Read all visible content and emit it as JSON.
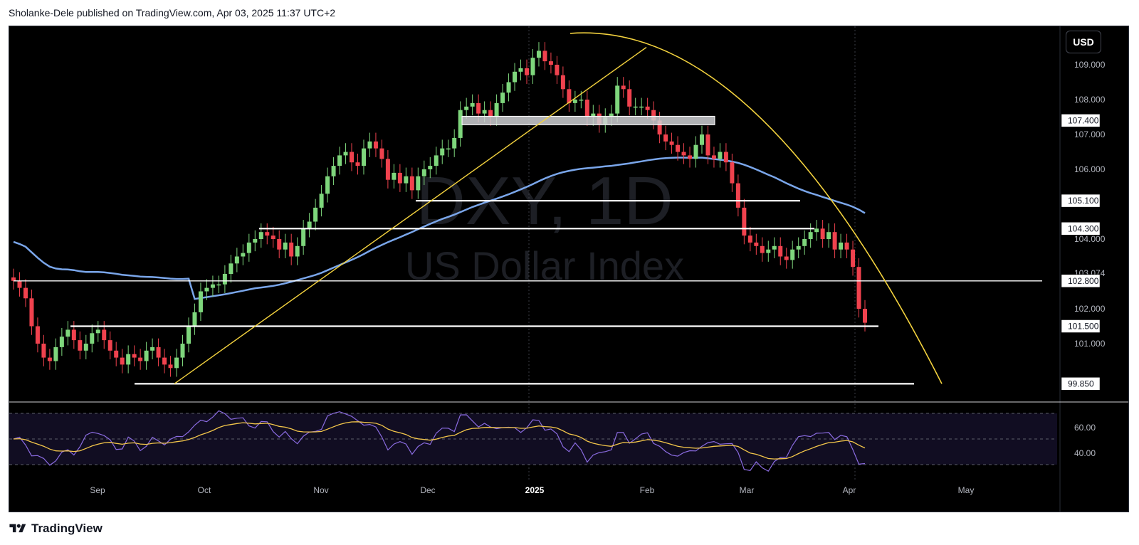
{
  "header": {
    "publisher_line": "Sholanke-Dele published on TradingView.com, Apr 03, 2025 11:37 UTC+2"
  },
  "footer": {
    "brand": "TradingView"
  },
  "toolbar": {
    "currency_button": "USD"
  },
  "colors": {
    "background": "#000000",
    "up": "#7ed67c",
    "down": "#f0424e",
    "ma": "#7aa6ea",
    "trend": "#f3d23e",
    "level": "#ffffff",
    "rsi": "#8a6be0",
    "rsi_ma": "#f3c64a",
    "text": "#b2b5be"
  },
  "chart_data": {
    "type": "candlestick",
    "symbol_watermark": "DXY, 1D",
    "name_watermark": "US Dollar Index",
    "y_ticks": [
      "109.000",
      "108.000",
      "107.000",
      "106.000",
      "104.000",
      "102.000",
      "101.000"
    ],
    "y_tick_values": [
      109,
      108,
      107,
      106,
      104,
      102,
      101
    ],
    "x_labels": [
      "Sep",
      "Oct",
      "Nov",
      "Dec",
      "2025",
      "Feb",
      "Mar",
      "Apr",
      "May"
    ],
    "price_labels": [
      {
        "text": "107.400",
        "value": 107.4
      },
      {
        "text": "105.100",
        "value": 105.1
      },
      {
        "text": "104.300",
        "value": 104.3
      },
      {
        "text": "102.800",
        "value": 102.8
      },
      {
        "text": "101.500",
        "value": 101.5
      },
      {
        "text": "99.850",
        "value": 99.85
      }
    ],
    "last_price_partial": "103.074",
    "levels": [
      {
        "value": 107.4,
        "from": "Dec 19",
        "to": "Feb 28",
        "style": "box"
      },
      {
        "value": 105.1,
        "from": "Dec 6",
        "to": "Mar 24"
      },
      {
        "value": 104.3,
        "from": "Oct 23",
        "to": "Mar 28"
      },
      {
        "value": 102.8,
        "from": "Aug 15",
        "to": "May 31"
      },
      {
        "value": 101.5,
        "from": "Aug 31",
        "to": "Apr 15"
      },
      {
        "value": 99.85,
        "from": "Sep 18",
        "to": "Apr 25"
      }
    ],
    "series": [
      {
        "name": "DXY",
        "kind": "candles",
        "closes": [
          102.8,
          102.6,
          102.3,
          101.5,
          101.0,
          100.6,
          100.5,
          100.9,
          101.2,
          101.4,
          101.1,
          100.8,
          101.0,
          101.3,
          101.4,
          101.1,
          100.8,
          100.6,
          100.4,
          100.7,
          100.6,
          100.5,
          100.8,
          100.9,
          100.6,
          100.4,
          100.3,
          100.6,
          101.0,
          101.5,
          101.9,
          102.5,
          102.6,
          102.7,
          102.7,
          103.0,
          103.3,
          103.5,
          103.6,
          103.9,
          104.0,
          104.2,
          104.1,
          104.0,
          103.7,
          103.9,
          103.5,
          103.8,
          104.3,
          104.5,
          104.9,
          105.3,
          105.8,
          106.1,
          106.4,
          106.5,
          106.2,
          106.1,
          106.6,
          106.8,
          106.6,
          106.3,
          105.7,
          105.9,
          105.6,
          105.8,
          105.4,
          105.8,
          106.0,
          106.1,
          106.4,
          106.6,
          106.6,
          106.9,
          107.7,
          107.8,
          107.9,
          107.6,
          107.7,
          107.5,
          107.9,
          108.2,
          108.5,
          108.8,
          108.9,
          108.7,
          109.2,
          109.4,
          109.1,
          109.0,
          108.7,
          108.3,
          107.9,
          108.0,
          108.0,
          107.5,
          107.6,
          107.3,
          107.5,
          107.6,
          108.4,
          108.3,
          107.8,
          107.8,
          107.8,
          107.7,
          107.4,
          107.0,
          106.8,
          106.7,
          106.5,
          106.4,
          106.3,
          106.7,
          107.0,
          106.4,
          106.3,
          106.5,
          106.2,
          105.6,
          104.9,
          104.1,
          103.9,
          103.8,
          103.6,
          103.7,
          103.8,
          103.5,
          103.4,
          103.7,
          103.8,
          104.0,
          104.2,
          104.3,
          104.0,
          104.2,
          103.7,
          103.9,
          103.7,
          103.2,
          102.0,
          101.6
        ]
      },
      {
        "name": "MA",
        "kind": "line"
      },
      {
        "name": "RSI",
        "kind": "oscillator",
        "levels": [
          "60.00",
          "40.00"
        ]
      }
    ]
  }
}
